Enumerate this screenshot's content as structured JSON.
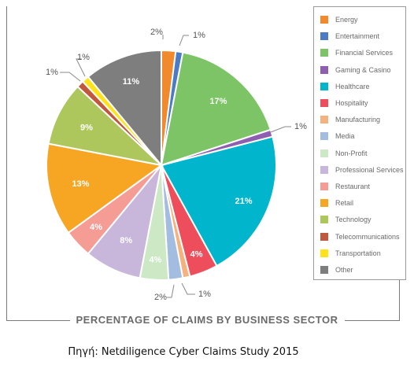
{
  "chart_data": {
    "type": "pie",
    "title": "PERCENTAGE OF CLAIMS BY BUSINESS SECTOR",
    "categories": [
      "Energy",
      "Entertainment",
      "Financial Services",
      "Gaming & Casino",
      "Healthcare",
      "Hospitality",
      "Manufacturing",
      "Media",
      "Non-Profit",
      "Professional Services",
      "Restaurant",
      "Retail",
      "Technology",
      "Telecommunications",
      "Transportation",
      "Other"
    ],
    "values": [
      2,
      1,
      17,
      1,
      21,
      4,
      1,
      2,
      4,
      8,
      4,
      13,
      9,
      1,
      1,
      11
    ],
    "labels": [
      "2%",
      "1%",
      "17%",
      "1%",
      "21%",
      "4%",
      "1%",
      "2%",
      "4%",
      "8%",
      "4%",
      "13%",
      "9%",
      "1%",
      "1%",
      "11%"
    ],
    "colors": [
      "#f08a2c",
      "#4a7bc4",
      "#7dc467",
      "#8e5fb0",
      "#00b5cc",
      "#ee4e5c",
      "#f5b27e",
      "#a3bde0",
      "#cce8c5",
      "#c8b6db",
      "#f59c95",
      "#f7a623",
      "#adc75c",
      "#c1573c",
      "#ffe21a",
      "#7e7e7e"
    ],
    "legend_position": "right"
  },
  "source_text": "Πηγή: Netdiligence Cyber Claims Study 2015"
}
